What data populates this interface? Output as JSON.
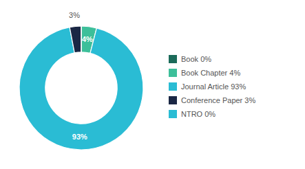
{
  "chart_data": {
    "type": "donut",
    "categories": [
      "Book 0%",
      "Book Chapter 4%",
      "Journal Article 93%",
      "Conference Paper 3%",
      "NTRO 0%"
    ],
    "values": [
      0.001,
      4,
      93,
      3,
      0.001
    ],
    "colors": [
      "#1b6b5a",
      "#3dbf9a",
      "#2abcd4",
      "#1a2744",
      "#2abcd4"
    ],
    "data_labels": true,
    "value_labels": [
      null,
      "4%",
      "93%",
      "3%",
      null
    ],
    "legend": "right"
  }
}
